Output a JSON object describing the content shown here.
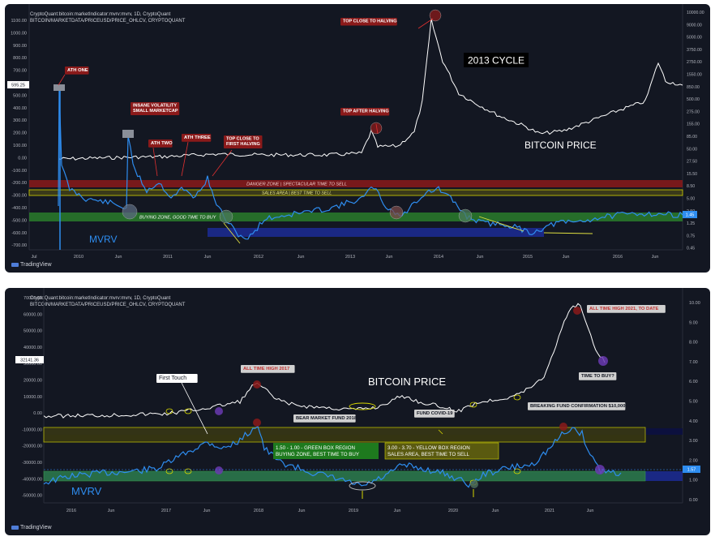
{
  "colors": {
    "bg": "#131722",
    "price": "#ffffff",
    "mvrv": "#2e8df0",
    "green": "#2e8b2e",
    "yellow": "#d4d400",
    "red": "#8b1a1a",
    "navy": "#1c2a8f",
    "axis": "#b2b5be"
  },
  "panel1": {
    "header": {
      "line1": "CryptoQuant:bitcoin:marketIndicator:mvrv:mvrv, 1D, CryptoQuant",
      "line2": "BITCOIN/MARKETDATA/PRICEUSD/PRICE_OHLCV, CRYPTOQUANT"
    },
    "title": "2013 CYCLE",
    "price_label": "BITCOIN PRICE",
    "mvrv_label": "MVRV",
    "zones": {
      "danger": "DANGER ZONE | SPECTACULAR TIME TO SELL",
      "sales": "SALES AREA | BEST TIME TO SELL",
      "buy": "BUYING ZONE, GOOD TIME TO BUY"
    },
    "annotations": [
      "ATH ONE",
      "INSANE VOLATILITY\nSMALL MARKETCAP",
      "ATH TWO",
      "ATH THREE",
      "TOP CLOSE TO\nFIRST HALVING",
      "TOP AFTER HALVING",
      "TOP CLOSE TO HALVING"
    ],
    "left_axis": [
      "1100.00",
      "1000.00",
      "900.00",
      "800.00",
      "700.00",
      "600.00",
      "500.00",
      "400.00",
      "300.00",
      "200.00",
      "100.00",
      "0.00",
      "-100.00",
      "-200.00",
      "-300.00",
      "-400.00",
      "-500.00",
      "-600.00",
      "-700.00"
    ],
    "left_marker": "595.25",
    "right_axis": [
      "10000.00",
      "9000.00",
      "5000.00",
      "3750.00",
      "2750.00",
      "1550.00",
      "850.00",
      "500.00",
      "275.00",
      "155.00",
      "85.00",
      "50.00",
      "27.50",
      "15.50",
      "8.50",
      "5.00",
      "2.50",
      "1.25",
      "0.75",
      "0.45"
    ],
    "right_marker": "1.45",
    "x_axis": [
      "Jul",
      "2010",
      "Jun",
      "2011",
      "Jun",
      "2012",
      "Jun",
      "2013",
      "Jun",
      "2014",
      "Jun",
      "2015",
      "Jun",
      "2016",
      "Jun"
    ],
    "logo": "TradingView"
  },
  "panel2": {
    "header": {
      "line1": "CryptoQuant:bitcoin:marketIndicator:mvrv:mvrv, 1D, CryptoQuant",
      "line2": "BITCOIN/MARKETDATA/PRICEUSD/PRICE_OHLCV, CRYPTOQUANT"
    },
    "price_label": "BITCOIN PRICE",
    "mvrv_label": "MVRV",
    "annotations": {
      "first_touch": "First Touch",
      "ath2017": "ALL TIME HIGH 2017",
      "ath2021": "ALL TIME HIGH 2021, TO DATE",
      "time_to_buy": "TIME TO BUY?",
      "bear_market": "BEAR MARKET FUND 2018",
      "covid": "FUND COVID-19",
      "breaking": "BREAKING FUND CONFIRMATION $10,000"
    },
    "green_box": [
      "1.50 - 1.00 - GREEN BOX REGION",
      "BUYING ZONE, BEST TIME TO BUY"
    ],
    "yellow_box": [
      "3.00 - 3.70 - YELLOW BOX REGION",
      "SALES AREA, BEST TIME TO SELL"
    ],
    "left_axis": [
      "70000.00",
      "60000.00",
      "50000.00",
      "40000.00",
      "30000.00",
      "20000.00",
      "10000.00",
      "0.00",
      "-10000.00",
      "-20000.00",
      "-30000.00",
      "-40000.00",
      "-50000.00"
    ],
    "left_marker": "32141.36",
    "right_axis": [
      "10.00",
      "9.00",
      "8.00",
      "7.00",
      "6.00",
      "5.00",
      "4.00",
      "3.00",
      "2.00",
      "1.00",
      "0.00"
    ],
    "right_marker": "1.57",
    "x_axis": [
      "2016",
      "Jun",
      "2017",
      "Jun",
      "2018",
      "Jun",
      "2019",
      "Jun",
      "2020",
      "Jun",
      "2021",
      "Jun"
    ],
    "logo": "TradingView"
  },
  "chart_data": [
    {
      "type": "line",
      "title": "2013 CYCLE",
      "series": [
        {
          "name": "BITCOIN PRICE",
          "x": [
            "2010-07",
            "2011-06",
            "2012-06",
            "2013-04",
            "2013-12",
            "2014-06",
            "2015-01",
            "2015-06",
            "2016-06"
          ],
          "values": [
            0.1,
            30,
            6,
            230,
            1150,
            600,
            200,
            250,
            650
          ]
        },
        {
          "name": "MVRV",
          "x": [
            "2010-07",
            "2011-06",
            "2011-11",
            "2013-04",
            "2013-12",
            "2014-06",
            "2015-01",
            "2016-06"
          ],
          "values": [
            5.5,
            3.4,
            0.5,
            3.5,
            3.9,
            1.5,
            0.6,
            1.45
          ]
        }
      ],
      "ylabel": "",
      "xlabel": ""
    },
    {
      "type": "line",
      "series": [
        {
          "name": "BITCOIN PRICE",
          "x": [
            "2016-01",
            "2016-12",
            "2017-12",
            "2018-12",
            "2019-06",
            "2020-03",
            "2020-12",
            "2021-04",
            "2021-07"
          ],
          "values": [
            430,
            950,
            19000,
            3200,
            13000,
            5000,
            29000,
            63000,
            32141
          ]
        },
        {
          "name": "MVRV",
          "x": [
            "2016-01",
            "2016-12",
            "2017-12",
            "2018-12",
            "2019-06",
            "2020-03",
            "2020-12",
            "2021-03",
            "2021-07"
          ],
          "values": [
            1.3,
            1.6,
            4.1,
            0.7,
            2.2,
            0.9,
            2.6,
            3.7,
            1.57
          ]
        }
      ],
      "ylabel": "",
      "xlabel": ""
    }
  ]
}
